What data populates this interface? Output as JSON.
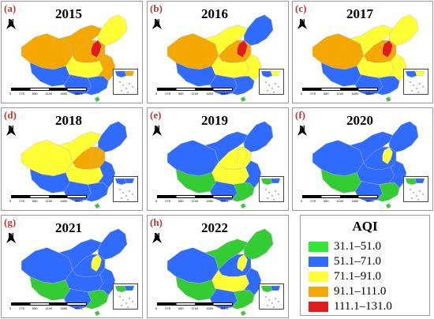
{
  "panels": [
    {
      "label": "(a)",
      "year": "2015",
      "colors": {
        "nw": "#f5a800",
        "nc": "#f5a800",
        "ne": "#ffff33",
        "n": "#f5a800",
        "c": "#ffff33",
        "e": "#f5a800",
        "s": "#2f6bff",
        "sw": "#2f6bff",
        "tibet": "#2f6bff",
        "hot": "#e31a1c",
        "island": "#33cc33"
      }
    },
    {
      "label": "(b)",
      "year": "2016",
      "colors": {
        "nw": "#f5a800",
        "nc": "#ffff33",
        "ne": "#2f6bff",
        "n": "#f5a800",
        "c": "#ffff33",
        "e": "#ffff33",
        "s": "#2f6bff",
        "sw": "#2f6bff",
        "tibet": "#2f6bff",
        "hot": "#e31a1c",
        "island": "#33cc33"
      }
    },
    {
      "label": "(c)",
      "year": "2017",
      "colors": {
        "nw": "#f5a800",
        "nc": "#ffff33",
        "ne": "#ffff33",
        "n": "#f5a800",
        "c": "#ffff33",
        "e": "#ffff33",
        "s": "#2f6bff",
        "sw": "#2f6bff",
        "tibet": "#2f6bff",
        "hot": "#e31a1c",
        "island": "#33cc33"
      }
    },
    {
      "label": "(d)",
      "year": "2018",
      "colors": {
        "nw": "#ffff33",
        "nc": "#ffff33",
        "ne": "#2f6bff",
        "n": "#f5a800",
        "c": "#ffff33",
        "e": "#2f6bff",
        "s": "#2f6bff",
        "sw": "#2f6bff",
        "tibet": "#2f6bff",
        "hot": "#f5a800",
        "island": "#33cc33"
      }
    },
    {
      "label": "(e)",
      "year": "2019",
      "colors": {
        "nw": "#2f6bff",
        "nc": "#2f6bff",
        "ne": "#2f6bff",
        "n": "#ffff33",
        "c": "#ffff33",
        "e": "#2f6bff",
        "s": "#33cc33",
        "sw": "#2f6bff",
        "tibet": "#33cc33",
        "hot": "#ffff33",
        "island": "#33cc33"
      }
    },
    {
      "label": "(f)",
      "year": "2020",
      "colors": {
        "nw": "#2f6bff",
        "nc": "#2f6bff",
        "ne": "#2f6bff",
        "n": "#2f6bff",
        "c": "#2f6bff",
        "e": "#2f6bff",
        "s": "#33cc33",
        "sw": "#2f6bff",
        "tibet": "#33cc33",
        "hot": "#ffff33",
        "island": "#33cc33"
      }
    },
    {
      "label": "(g)",
      "year": "2021",
      "colors": {
        "nw": "#2f6bff",
        "nc": "#2f6bff",
        "ne": "#2f6bff",
        "n": "#2f6bff",
        "c": "#2f6bff",
        "e": "#2f6bff",
        "s": "#33cc33",
        "sw": "#2f6bff",
        "tibet": "#33cc33",
        "hot": "#ffff33",
        "island": "#33cc33"
      }
    },
    {
      "label": "(h)",
      "year": "2022",
      "colors": {
        "nw": "#2f6bff",
        "nc": "#33cc33",
        "ne": "#33cc33",
        "n": "#2f6bff",
        "c": "#ffff33",
        "e": "#2f6bff",
        "s": "#33cc33",
        "sw": "#2f6bff",
        "tibet": "#33cc33",
        "hot": "#ffff33",
        "island": "#33cc33"
      }
    }
  ],
  "north_label": "N",
  "scale_ticks": [
    "0",
    "275",
    "550",
    "1100",
    "1650"
  ],
  "scale_unit": "Miles",
  "legend": {
    "title": "AQI",
    "items": [
      {
        "label": "31.1–51.0",
        "color": "#33e833"
      },
      {
        "label": "51.1–71.0",
        "color": "#2f6bff"
      },
      {
        "label": "71.1–91.0",
        "color": "#ffff33"
      },
      {
        "label": "91.1–111.0",
        "color": "#f5a800"
      },
      {
        "label": "111.1–131.0",
        "color": "#e31a1c"
      }
    ]
  }
}
